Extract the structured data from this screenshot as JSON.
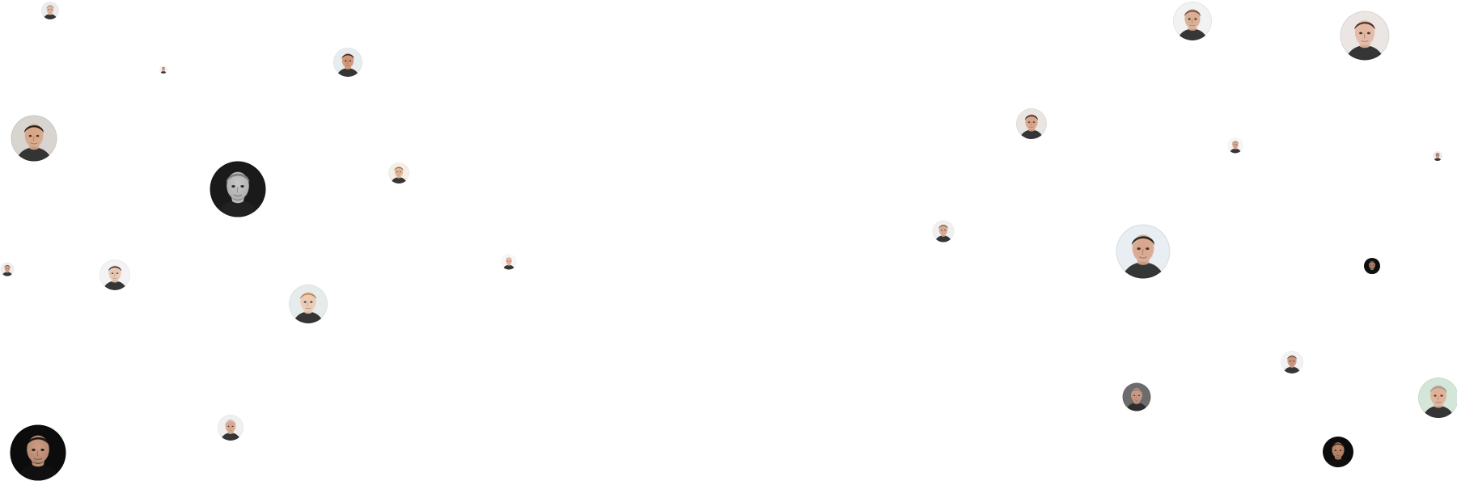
{
  "page": {
    "background": "#ffffff"
  },
  "avatars": [
    {
      "name": "avatar-01",
      "tone": "light",
      "skin": "#e0b49a",
      "hair": "#8a8a8a",
      "bg": "#ececec"
    },
    {
      "name": "avatar-02",
      "tone": "light",
      "skin": "#d59c82",
      "hair": "#5a3a2a",
      "bg": "#f2f2f2"
    },
    {
      "name": "avatar-03",
      "tone": "light",
      "skin": "#cf8f6f",
      "hair": "#2a2020",
      "bg": "#e7ecef"
    },
    {
      "name": "avatar-04",
      "tone": "light",
      "skin": "#d9a585",
      "hair": "#1e1a18",
      "bg": "#d8d5d0"
    },
    {
      "name": "avatar-05",
      "tone": "mono",
      "skin": "#c8c8c8",
      "hair": "#7a7a7a",
      "bg": "#1a1a1a"
    },
    {
      "name": "avatar-06",
      "tone": "light",
      "skin": "#e2b394",
      "hair": "#8a5a3a",
      "bg": "#f4efe6"
    },
    {
      "name": "avatar-07",
      "tone": "light",
      "skin": "#d39a7a",
      "hair": "#3a2a22",
      "bg": "#eeeeee"
    },
    {
      "name": "avatar-08",
      "tone": "light",
      "skin": "#e8c4b0",
      "hair": "#1c1c1c",
      "bg": "#f3f3f3"
    },
    {
      "name": "avatar-09",
      "tone": "light",
      "skin": "#edc9b3",
      "hair": "#b8834d",
      "bg": "#e6ecec"
    },
    {
      "name": "avatar-10",
      "tone": "light",
      "skin": "#e6b29a",
      "hair": "#e0c0a8",
      "bg": "#f7f7f7"
    },
    {
      "name": "avatar-11",
      "tone": "light",
      "skin": "#d8a58a",
      "hair": "#c8c8c8",
      "bg": "#f0f0f0"
    },
    {
      "name": "avatar-12",
      "tone": "dark",
      "skin": "#cf9c82",
      "hair": "#121212",
      "bg": "#0c0c0c"
    },
    {
      "name": "avatar-13",
      "tone": "light",
      "skin": "#d9aa8e",
      "hair": "#6a4a3a",
      "bg": "#f2f2f2"
    },
    {
      "name": "avatar-14",
      "tone": "light",
      "skin": "#e3b6a2",
      "hair": "#4a2e22",
      "bg": "#ebe6e4"
    },
    {
      "name": "avatar-15",
      "tone": "light",
      "skin": "#d6a085",
      "hair": "#1a1410",
      "bg": "#e9e5e1"
    },
    {
      "name": "avatar-16",
      "tone": "light",
      "skin": "#d8a086",
      "hair": "#9a8a70",
      "bg": "#f5f5f5"
    },
    {
      "name": "avatar-17",
      "tone": "light",
      "skin": "#c48f74",
      "hair": "#262626",
      "bg": "#ededed"
    },
    {
      "name": "avatar-18",
      "tone": "light",
      "skin": "#d9a88f",
      "hair": "#5a4636",
      "bg": "#f0f0f0"
    },
    {
      "name": "avatar-19",
      "tone": "light",
      "skin": "#d8a48a",
      "hair": "#202020",
      "bg": "#e8eef2"
    },
    {
      "name": "avatar-20",
      "tone": "dark",
      "skin": "#b6866c",
      "hair": "#1e1410",
      "bg": "#0e0e0e"
    },
    {
      "name": "avatar-21",
      "tone": "light",
      "skin": "#c99078",
      "hair": "#4a3020",
      "bg": "#f2f2f2"
    },
    {
      "name": "avatar-22",
      "tone": "light",
      "skin": "#cf9a84",
      "hair": "#7c7c7c",
      "bg": "#6c6c6c"
    },
    {
      "name": "avatar-23",
      "tone": "light",
      "skin": "#e0ae94",
      "hair": "#9a9a9a",
      "bg": "#d4e6d8"
    },
    {
      "name": "avatar-24",
      "tone": "dark",
      "skin": "#c58d6d",
      "hair": "#3a2010",
      "bg": "#0c0c0c"
    },
    {
      "name": "avatar-25",
      "tone": "light",
      "skin": "#d99b86",
      "hair": "#2e2420",
      "bg": "#6f8fa8"
    }
  ]
}
